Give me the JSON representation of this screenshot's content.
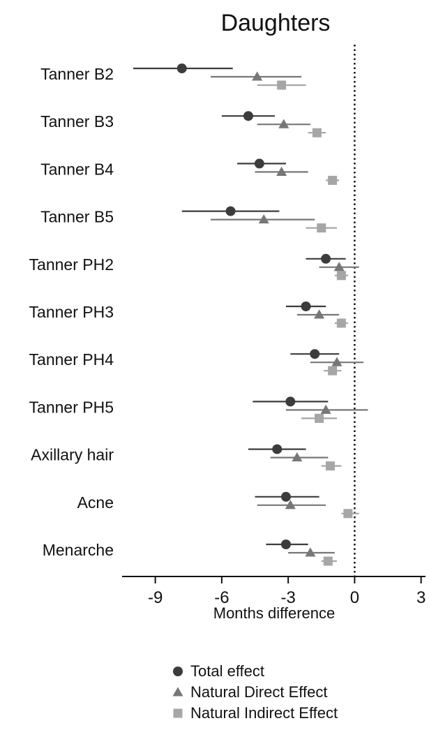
{
  "chart_data": {
    "type": "forest",
    "title": "Daughters",
    "xlabel": "Months difference",
    "xlim": [
      -10.5,
      3.2
    ],
    "xticks": [
      -9,
      -6,
      -3,
      0,
      3
    ],
    "reference_line": 0,
    "legend_position": "bottom",
    "categories": [
      "Tanner B2",
      "Tanner B3",
      "Tanner B4",
      "Tanner B5",
      "Tanner PH2",
      "Tanner PH3",
      "Tanner PH4",
      "Tanner PH5",
      "Axillary hair",
      "Acne",
      "Menarche"
    ],
    "series": [
      {
        "name": "Total effect",
        "marker": "circle",
        "color": "#3c3c3c",
        "estimates": [
          -7.8,
          -4.8,
          -4.3,
          -5.6,
          -1.3,
          -2.2,
          -1.8,
          -2.9,
          -3.5,
          -3.1,
          -3.1
        ],
        "lower": [
          -10.0,
          -6.0,
          -5.3,
          -7.8,
          -2.2,
          -3.1,
          -2.9,
          -4.6,
          -4.8,
          -4.5,
          -4.0
        ],
        "upper": [
          -5.5,
          -3.6,
          -3.1,
          -3.4,
          -0.4,
          -1.3,
          -0.7,
          -1.2,
          -2.2,
          -1.6,
          -2.1
        ]
      },
      {
        "name": "Natural Direct Effect",
        "marker": "triangle",
        "color": "#777777",
        "estimates": [
          -4.4,
          -3.2,
          -3.3,
          -4.1,
          -0.7,
          -1.6,
          -0.8,
          -1.3,
          -2.6,
          -2.9,
          -2.0
        ],
        "lower": [
          -6.5,
          -4.4,
          -4.5,
          -6.5,
          -1.6,
          -2.6,
          -2.0,
          -3.1,
          -3.8,
          -4.4,
          -3.0
        ],
        "upper": [
          -2.4,
          -2.0,
          -2.1,
          -1.8,
          0.2,
          -0.7,
          0.4,
          0.6,
          -1.2,
          -1.3,
          -0.9
        ]
      },
      {
        "name": "Natural Indirect Effect",
        "marker": "square",
        "color": "#a6a6a6",
        "estimates": [
          -3.3,
          -1.7,
          -1.0,
          -1.5,
          -0.6,
          -0.6,
          -1.0,
          -1.6,
          -1.1,
          -0.3,
          -1.2
        ],
        "lower": [
          -4.4,
          -2.1,
          -1.3,
          -2.2,
          -0.9,
          -0.9,
          -1.4,
          -2.4,
          -1.5,
          -0.6,
          -1.5
        ],
        "upper": [
          -2.2,
          -1.3,
          -0.7,
          -0.8,
          -0.3,
          -0.3,
          -0.6,
          -0.8,
          -0.6,
          0.2,
          -0.8
        ]
      }
    ]
  }
}
